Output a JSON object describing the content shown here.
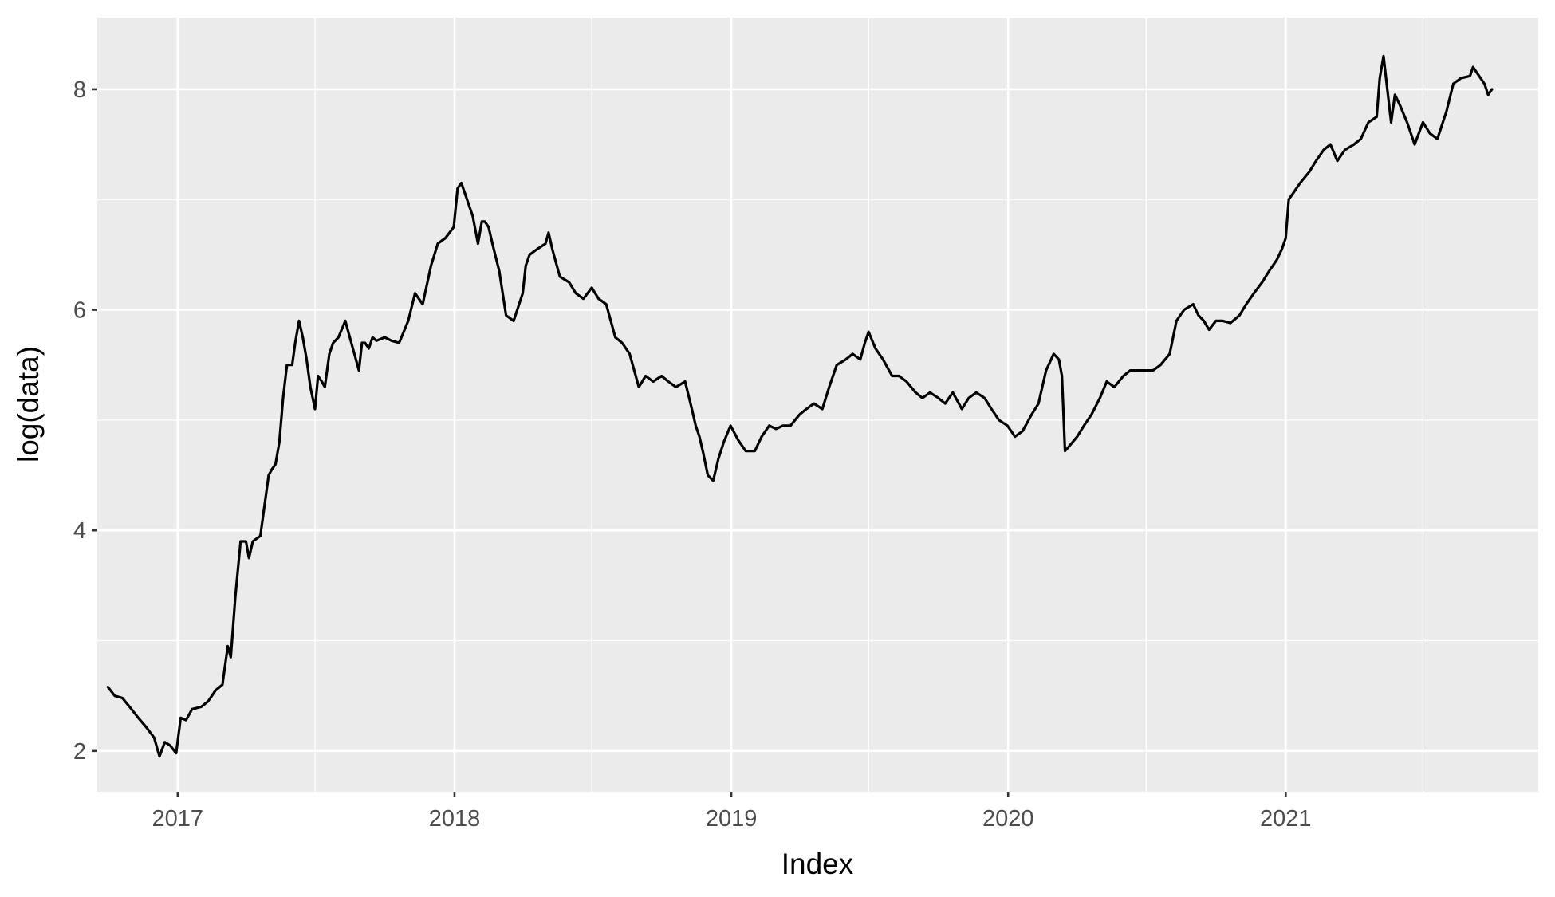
{
  "chart_data": {
    "type": "line",
    "title": "",
    "xlabel": "Index",
    "ylabel": "log(data)",
    "x_ticks": [
      "2017",
      "2018",
      "2019",
      "2020",
      "2021"
    ],
    "y_ticks": [
      "2",
      "4",
      "6",
      "8"
    ],
    "x_range": [
      "2016-09-17",
      "2021-11-30"
    ],
    "y_range": [
      1.63,
      8.65
    ],
    "grid": true,
    "legend": "none",
    "line_color": "#000000",
    "panel_color": "#ebebeb",
    "series": [
      {
        "x": [
          "2016-10-01",
          "2016-10-10",
          "2016-10-20",
          "2016-11-01",
          "2016-11-10",
          "2016-11-20",
          "2016-12-01",
          "2016-12-08",
          "2016-12-15",
          "2016-12-22",
          "2016-12-30",
          "2017-01-05",
          "2017-01-12",
          "2017-01-20",
          "2017-02-01",
          "2017-02-10",
          "2017-02-20",
          "2017-03-01",
          "2017-03-08",
          "2017-03-12",
          "2017-03-18",
          "2017-03-25",
          "2017-04-01",
          "2017-04-05",
          "2017-04-10",
          "2017-04-20",
          "2017-05-01",
          "2017-05-05",
          "2017-05-10",
          "2017-05-15",
          "2017-05-20",
          "2017-05-25",
          "2017-06-01",
          "2017-06-05",
          "2017-06-10",
          "2017-06-15",
          "2017-06-20",
          "2017-06-25",
          "2017-07-01",
          "2017-07-05",
          "2017-07-10",
          "2017-07-14",
          "2017-07-20",
          "2017-07-25",
          "2017-08-01",
          "2017-08-10",
          "2017-08-20",
          "2017-08-28",
          "2017-09-01",
          "2017-09-05",
          "2017-09-10",
          "2017-09-15",
          "2017-09-20",
          "2017-10-01",
          "2017-10-10",
          "2017-10-20",
          "2017-11-01",
          "2017-11-10",
          "2017-11-20",
          "2017-12-01",
          "2017-12-10",
          "2017-12-20",
          "2017-12-31",
          "2018-01-05",
          "2018-01-10",
          "2018-01-15",
          "2018-01-20",
          "2018-01-25",
          "2018-02-01",
          "2018-02-06",
          "2018-02-10",
          "2018-02-15",
          "2018-02-20",
          "2018-03-01",
          "2018-03-10",
          "2018-03-20",
          "2018-04-01",
          "2018-04-05",
          "2018-04-10",
          "2018-04-20",
          "2018-05-01",
          "2018-05-05",
          "2018-05-10",
          "2018-05-20",
          "2018-06-01",
          "2018-06-10",
          "2018-06-20",
          "2018-07-01",
          "2018-07-10",
          "2018-07-20",
          "2018-08-01",
          "2018-08-10",
          "2018-08-20",
          "2018-09-01",
          "2018-09-10",
          "2018-09-20",
          "2018-10-01",
          "2018-10-10",
          "2018-10-20",
          "2018-11-01",
          "2018-11-10",
          "2018-11-15",
          "2018-11-20",
          "2018-11-25",
          "2018-12-01",
          "2018-12-08",
          "2018-12-15",
          "2018-12-22",
          "2018-12-31",
          "2019-01-10",
          "2019-01-20",
          "2019-02-01",
          "2019-02-10",
          "2019-02-20",
          "2019-03-01",
          "2019-03-10",
          "2019-03-20",
          "2019-04-01",
          "2019-04-10",
          "2019-04-20",
          "2019-05-01",
          "2019-05-10",
          "2019-05-20",
          "2019-06-01",
          "2019-06-10",
          "2019-06-20",
          "2019-06-26",
          "2019-07-01",
          "2019-07-10",
          "2019-07-20",
          "2019-08-01",
          "2019-08-10",
          "2019-08-20",
          "2019-09-01",
          "2019-09-10",
          "2019-09-20",
          "2019-10-01",
          "2019-10-10",
          "2019-10-20",
          "2019-11-01",
          "2019-11-10",
          "2019-11-20",
          "2019-12-01",
          "2019-12-10",
          "2019-12-20",
          "2019-12-31",
          "2020-01-10",
          "2020-01-20",
          "2020-02-01",
          "2020-02-10",
          "2020-02-15",
          "2020-02-20",
          "2020-03-01",
          "2020-03-08",
          "2020-03-12",
          "2020-03-16",
          "2020-03-20",
          "2020-04-01",
          "2020-04-10",
          "2020-04-20",
          "2020-05-01",
          "2020-05-10",
          "2020-05-20",
          "2020-06-01",
          "2020-06-10",
          "2020-06-20",
          "2020-07-01",
          "2020-07-10",
          "2020-07-20",
          "2020-08-01",
          "2020-08-10",
          "2020-08-20",
          "2020-09-01",
          "2020-09-08",
          "2020-09-15",
          "2020-09-22",
          "2020-10-01",
          "2020-10-10",
          "2020-10-20",
          "2020-11-01",
          "2020-11-10",
          "2020-11-20",
          "2020-12-01",
          "2020-12-10",
          "2020-12-20",
          "2020-12-27",
          "2021-01-01",
          "2021-01-05",
          "2021-01-10",
          "2021-01-20",
          "2021-02-01",
          "2021-02-10",
          "2021-02-20",
          "2021-03-01",
          "2021-03-10",
          "2021-03-20",
          "2021-04-01",
          "2021-04-10",
          "2021-04-20",
          "2021-05-01",
          "2021-05-05",
          "2021-05-10",
          "2021-05-15",
          "2021-05-20",
          "2021-05-25",
          "2021-06-01",
          "2021-06-10",
          "2021-06-20",
          "2021-07-01",
          "2021-07-10",
          "2021-07-20",
          "2021-08-01",
          "2021-08-10",
          "2021-08-20",
          "2021-09-01",
          "2021-09-05",
          "2021-09-10",
          "2021-09-15",
          "2021-09-20",
          "2021-09-25",
          "2021-09-30"
        ],
        "y": [
          2.58,
          2.5,
          2.48,
          2.38,
          2.3,
          2.22,
          2.12,
          1.95,
          2.08,
          2.05,
          1.98,
          2.3,
          2.28,
          2.38,
          2.4,
          2.45,
          2.55,
          2.6,
          2.95,
          2.85,
          3.4,
          3.9,
          3.9,
          3.75,
          3.9,
          3.95,
          4.5,
          4.55,
          4.6,
          4.8,
          5.2,
          5.5,
          5.5,
          5.7,
          5.9,
          5.75,
          5.55,
          5.3,
          5.1,
          5.4,
          5.35,
          5.3,
          5.6,
          5.7,
          5.75,
          5.9,
          5.65,
          5.45,
          5.7,
          5.7,
          5.65,
          5.75,
          5.72,
          5.75,
          5.72,
          5.7,
          5.9,
          6.15,
          6.05,
          6.4,
          6.6,
          6.65,
          6.75,
          7.1,
          7.15,
          7.05,
          6.95,
          6.85,
          6.6,
          6.8,
          6.8,
          6.75,
          6.6,
          6.35,
          5.95,
          5.9,
          6.15,
          6.4,
          6.5,
          6.55,
          6.6,
          6.7,
          6.55,
          6.3,
          6.25,
          6.15,
          6.1,
          6.2,
          6.1,
          6.05,
          5.75,
          5.7,
          5.6,
          5.3,
          5.4,
          5.35,
          5.4,
          5.35,
          5.3,
          5.35,
          5.1,
          4.95,
          4.85,
          4.7,
          4.5,
          4.45,
          4.65,
          4.8,
          4.95,
          4.82,
          4.72,
          4.72,
          4.85,
          4.95,
          4.92,
          4.95,
          4.95,
          5.05,
          5.1,
          5.15,
          5.1,
          5.3,
          5.5,
          5.55,
          5.6,
          5.55,
          5.7,
          5.8,
          5.65,
          5.55,
          5.4,
          5.4,
          5.35,
          5.25,
          5.2,
          5.25,
          5.2,
          5.15,
          5.25,
          5.1,
          5.2,
          5.25,
          5.2,
          5.1,
          5.0,
          4.95,
          4.85,
          4.9,
          5.05,
          5.15,
          5.3,
          5.45,
          5.6,
          5.55,
          5.4,
          4.72,
          4.75,
          4.85,
          4.95,
          5.05,
          5.2,
          5.35,
          5.3,
          5.4,
          5.45,
          5.45,
          5.45,
          5.45,
          5.5,
          5.6,
          5.9,
          6.0,
          6.05,
          5.95,
          5.9,
          5.82,
          5.9,
          5.9,
          5.88,
          5.95,
          6.05,
          6.15,
          6.25,
          6.35,
          6.45,
          6.55,
          6.65,
          7.0,
          7.05,
          7.15,
          7.25,
          7.35,
          7.45,
          7.5,
          7.35,
          7.45,
          7.5,
          7.55,
          7.7,
          7.75,
          8.1,
          8.3,
          8.0,
          7.7,
          7.95,
          7.85,
          7.7,
          7.5,
          7.7,
          7.6,
          7.55,
          7.8,
          8.05,
          8.1,
          8.12,
          8.2,
          8.15,
          8.1,
          8.05,
          7.95,
          8.0
        ]
      }
    ]
  }
}
